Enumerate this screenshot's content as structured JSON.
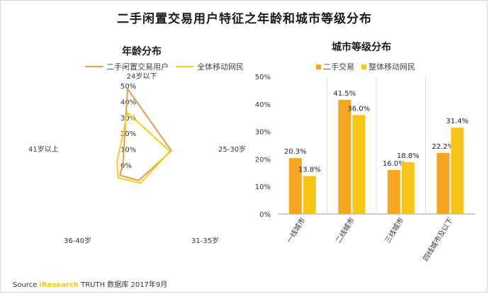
{
  "title": "二手闲置交易用户特征之年龄和城市等级分布",
  "source": {
    "label": "Source",
    "brand": "iResearch",
    "rest": "TRUTH 数据库 2017年9月"
  },
  "colors": {
    "series1": "#d9a55b",
    "series2": "#f5cf30",
    "bar1": "#f5a623",
    "bar2": "#f7c41a"
  },
  "chart_data": [
    {
      "type": "radar",
      "title": "年龄分布",
      "axes": [
        "24岁以下",
        "25-30岁",
        "31-35岁",
        "36-40岁",
        "41岁以上"
      ],
      "rticks": [
        "0%",
        "10%",
        "20%",
        "30%",
        "40%",
        "50%"
      ],
      "rmax": 50,
      "series": [
        {
          "name": "二手闲置交易用户",
          "values": [
            48,
            29,
            12,
            8,
            3
          ]
        },
        {
          "name": "全体移动网民",
          "values": [
            33,
            28,
            14,
            10,
            7
          ]
        }
      ],
      "legend": "top"
    },
    {
      "type": "bar",
      "title": "城市等级分布",
      "categories": [
        "一线城市",
        "二线城市",
        "三线城市",
        "四线城市及以下"
      ],
      "series": [
        {
          "name": "二手交易",
          "values": [
            20.3,
            41.5,
            16.0,
            22.2
          ],
          "labels": [
            "20.3%",
            "41.5%",
            "16.0%",
            "22.2%"
          ]
        },
        {
          "name": "整体移动网民",
          "values": [
            13.8,
            36.0,
            18.8,
            31.4
          ],
          "labels": [
            "13.8%",
            "36.0%",
            "18.8%",
            "31.4%"
          ]
        }
      ],
      "yticks": [
        "0%",
        "10%",
        "20%",
        "30%",
        "40%",
        "50%"
      ],
      "ylim": [
        0,
        50
      ],
      "grid": false,
      "legend": "top"
    }
  ]
}
